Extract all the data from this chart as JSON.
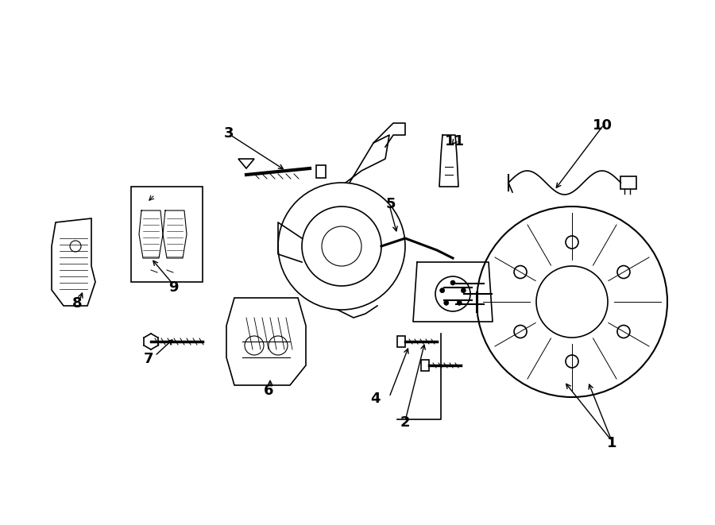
{
  "bg_color": "#ffffff",
  "line_color": "#000000",
  "fig_width": 9.0,
  "fig_height": 6.61,
  "dpi": 100,
  "labels": [
    [
      "1",
      770,
      558
    ],
    [
      "2",
      510,
      532
    ],
    [
      "3",
      288,
      168
    ],
    [
      "4",
      472,
      502
    ],
    [
      "5",
      492,
      257
    ],
    [
      "6",
      338,
      492
    ],
    [
      "7",
      187,
      452
    ],
    [
      "8",
      97,
      382
    ],
    [
      "9",
      218,
      362
    ],
    [
      "10",
      758,
      158
    ],
    [
      "11",
      572,
      178
    ]
  ]
}
